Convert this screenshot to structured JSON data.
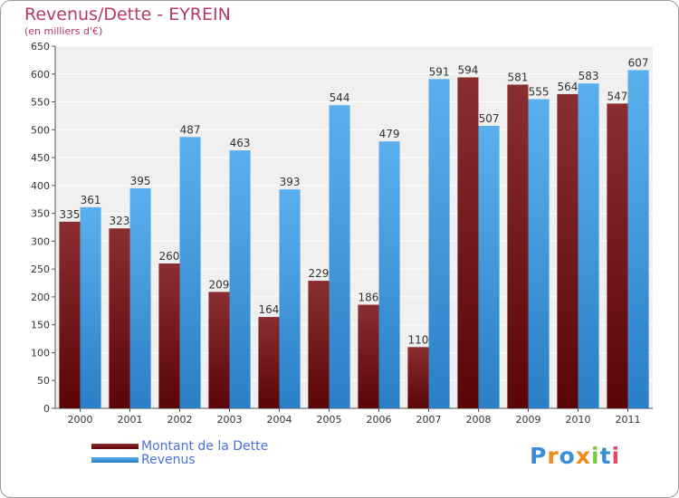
{
  "chart_data": {
    "type": "bar",
    "title": "Revenus/Dette - EYREIN",
    "subtitle": "(en milliers d'€)",
    "categories": [
      "2000",
      "2001",
      "2002",
      "2003",
      "2004",
      "2005",
      "2006",
      "2007",
      "2008",
      "2009",
      "2010",
      "2011"
    ],
    "series": [
      {
        "name": "Montant de la Dette",
        "color": "#7a1f22",
        "values": [
          335,
          323,
          260,
          209,
          164,
          229,
          186,
          110,
          594,
          581,
          564,
          547
        ]
      },
      {
        "name": "Revenus",
        "color": "#4aa3e8",
        "values": [
          361,
          395,
          487,
          463,
          393,
          544,
          479,
          591,
          507,
          555,
          583,
          607
        ]
      }
    ],
    "ylim": [
      0,
      650
    ],
    "yticks": [
      0,
      50,
      100,
      150,
      200,
      250,
      300,
      350,
      400,
      450,
      500,
      550,
      600,
      650
    ],
    "grid": true,
    "legend_position": "bottom-left"
  },
  "logo": {
    "text": "Proxiti",
    "colors": [
      "#3a8fd8",
      "#f08a1c",
      "#3a8fd8",
      "#f08a1c",
      "#7ac943",
      "#3a8fd8",
      "#e8456a"
    ]
  }
}
